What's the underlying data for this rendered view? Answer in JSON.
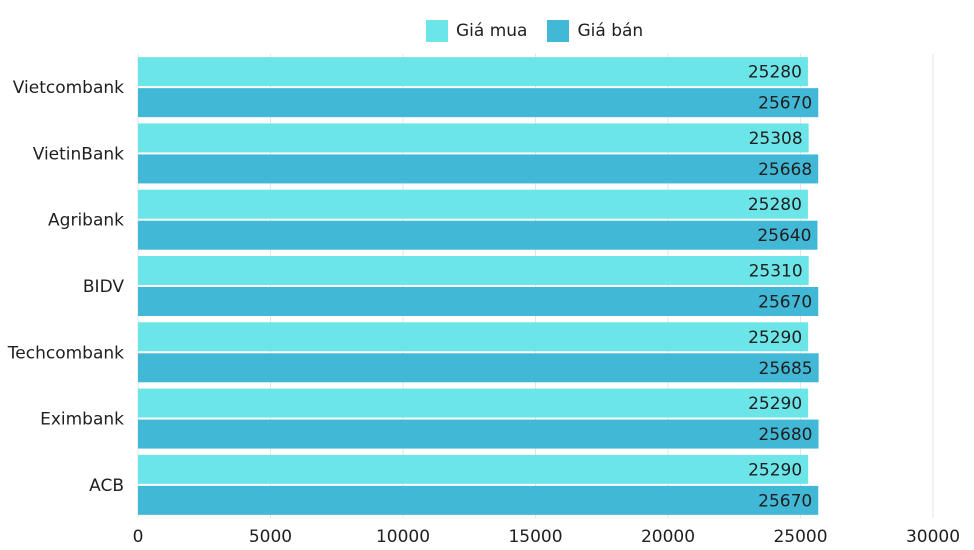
{
  "chart_data": {
    "type": "bar",
    "orientation": "horizontal",
    "categories": [
      "Vietcombank",
      "VietinBank",
      "Agribank",
      "BIDV",
      "Techcombank",
      "Eximbank",
      "ACB"
    ],
    "series": [
      {
        "name": "Giá mua",
        "color": "#6ce5e8",
        "values": [
          25280,
          25308,
          25280,
          25310,
          25290,
          25290,
          25290
        ]
      },
      {
        "name": "Giá bán",
        "color": "#41b8d5",
        "values": [
          25670,
          25668,
          25640,
          25670,
          25685,
          25680,
          25670
        ]
      }
    ],
    "xlim": [
      0,
      30000
    ],
    "x_ticks": [
      "0",
      "5000",
      "10000",
      "15000",
      "20000",
      "25000",
      "30000"
    ],
    "grid": true,
    "legend_position": "top"
  }
}
